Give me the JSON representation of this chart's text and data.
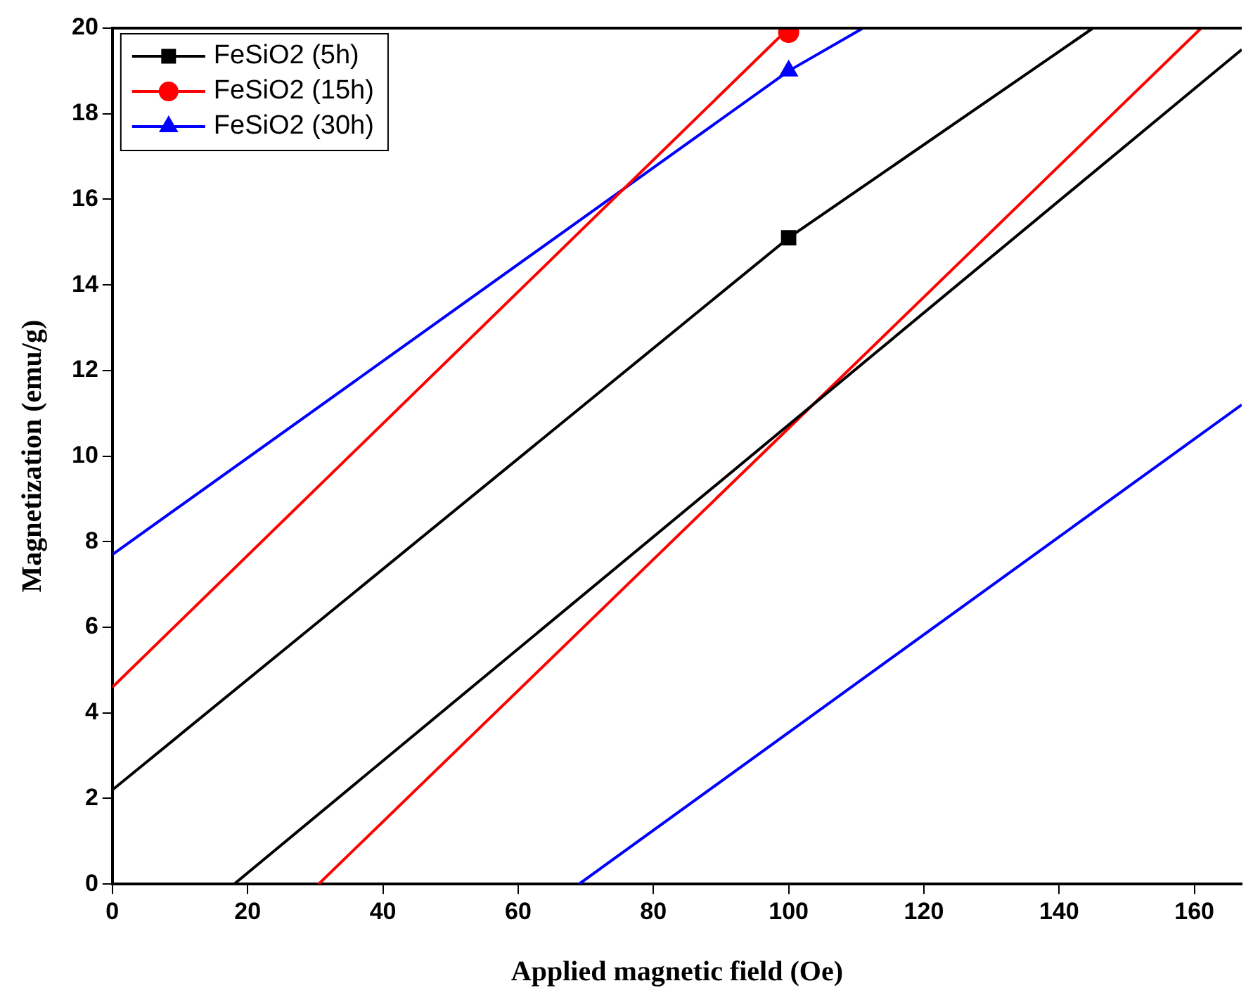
{
  "chart_data": {
    "type": "line",
    "xlabel": "Applied magnetic field (Oe)",
    "ylabel": "Magnetization (emu/g)",
    "xlim": [
      0,
      167
    ],
    "xticks": [
      0,
      20,
      40,
      60,
      80,
      100,
      120,
      140,
      160
    ],
    "ylim": [
      0,
      20
    ],
    "yticks": [
      0,
      2,
      4,
      6,
      8,
      10,
      12,
      14,
      16,
      18,
      20
    ],
    "grid": false,
    "legend": "top left",
    "series": [
      {
        "name": "FeSiO2 (5h)",
        "color": "#000000",
        "x": [
          0,
          100,
          145,
          null,
          18,
          167
        ],
        "values": [
          2.2,
          15.1,
          20,
          null,
          0,
          19.5
        ]
      },
      {
        "name": "FeSiO2 (15h)",
        "color": "#ff0000",
        "x": [
          0,
          100,
          null,
          30.5,
          161
        ],
        "values": [
          4.6,
          20,
          null,
          0,
          20
        ]
      },
      {
        "name": "FeSiO2 (30h)",
        "color": "#0000ff",
        "x": [
          0,
          100,
          111,
          null,
          69,
          167
        ],
        "values": [
          7.7,
          19,
          20,
          null,
          0,
          11.2
        ]
      },
      {
        "type": "scatter",
        "color": "#000000",
        "marker": "square",
        "x": [
          100
        ],
        "values": [
          15.1
        ]
      },
      {
        "type": "scatter",
        "color": "#ff0000",
        "marker": "circle",
        "x": [
          100
        ],
        "values": [
          19.9
        ]
      },
      {
        "type": "scatter",
        "color": "#0000ff",
        "marker": "triangle",
        "x": [
          100
        ],
        "values": [
          19
        ]
      }
    ]
  }
}
